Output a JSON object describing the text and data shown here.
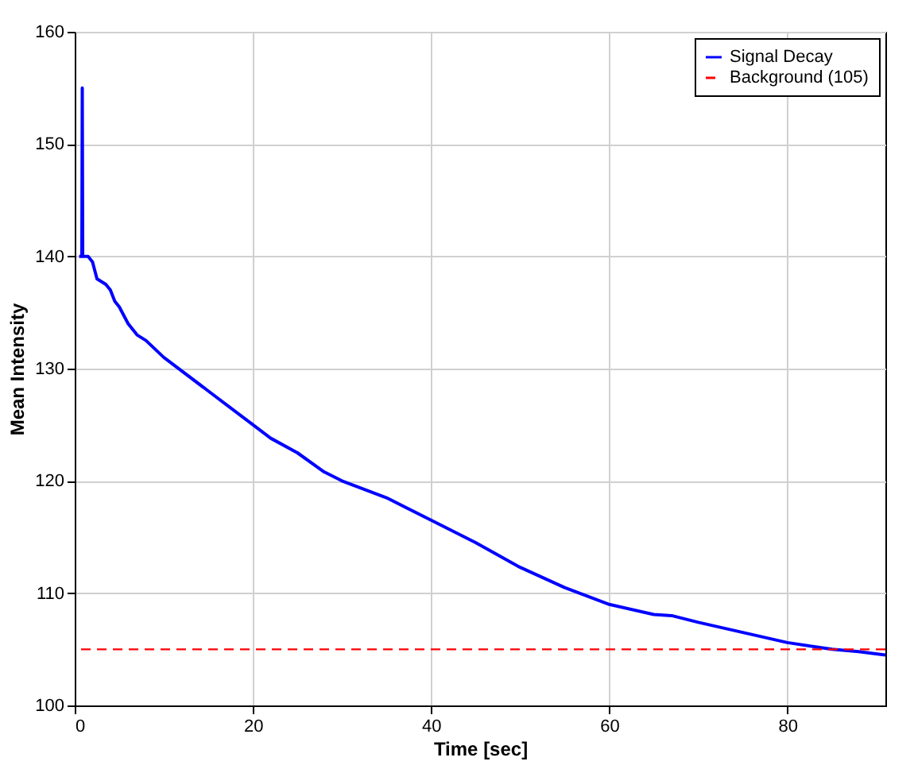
{
  "chart_data": {
    "type": "line",
    "xlabel": "Time [sec]",
    "ylabel": "Mean Intensity",
    "x": [
      0.5,
      0.8,
      0.85,
      0.9,
      1.5,
      2,
      2.5,
      3.5,
      4,
      4.5,
      5,
      6,
      7,
      8,
      10,
      15,
      20,
      22,
      25,
      28,
      30,
      35,
      40,
      45,
      50,
      55,
      60,
      65,
      67,
      70,
      75,
      80,
      85,
      88,
      91
    ],
    "series": [
      {
        "name": "Signal Decay",
        "color": "#0000ff",
        "line_style": "solid",
        "values": [
          140,
          140,
          155,
          140,
          140,
          139.5,
          138,
          137.5,
          137,
          136,
          135.5,
          134,
          133,
          132.5,
          131,
          128,
          125,
          123.8,
          122.5,
          120.8,
          120,
          118.5,
          116.5,
          114.5,
          112.3,
          110.5,
          109,
          108.1,
          108,
          107.4,
          106.5,
          105.6,
          105,
          104.8,
          104.5
        ]
      }
    ],
    "ref_lines": [
      {
        "axis": "y",
        "value": 105,
        "label": "Background (105)",
        "color": "#ff0000",
        "line_style": "dashed"
      }
    ],
    "xlim": [
      0,
      91
    ],
    "xticks": [
      0,
      20,
      40,
      60,
      80
    ],
    "ylim": [
      100,
      160
    ],
    "yticks": [
      100,
      110,
      120,
      130,
      140,
      150,
      160
    ],
    "grid": true,
    "legend": "top right"
  }
}
